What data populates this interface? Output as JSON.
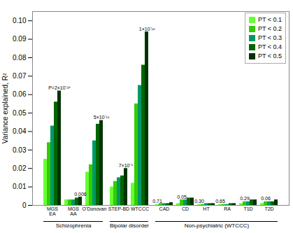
{
  "chart_data": {
    "type": "bar",
    "categories": [
      "MGS\nEA",
      "MGS\nAA",
      "O'Donovan",
      "STEP-BD",
      "WTCCC",
      "CAD",
      "CD",
      "HT",
      "RA",
      "T1D",
      "T2D"
    ],
    "series": [
      {
        "name": "PT < 0.1",
        "color": "#66ff33",
        "values": [
          0.025,
          0.003,
          0.018,
          0.01,
          0.012,
          0.0005,
          0.001,
          0.0005,
          0.0005,
          0.001,
          0.001
        ]
      },
      {
        "name": "PT < 0.2",
        "color": "#33cc00",
        "values": [
          0.034,
          0.003,
          0.022,
          0.013,
          0.055,
          0.001,
          0.003,
          0.0005,
          0.0005,
          0.002,
          0.002
        ]
      },
      {
        "name": "PT < 0.3",
        "color": "#009966",
        "values": [
          0.043,
          0.003,
          0.035,
          0.015,
          0.065,
          0.001,
          0.003,
          0.001,
          0.0005,
          0.002,
          0.002
        ]
      },
      {
        "name": "PT < 0.4",
        "color": "#006600",
        "values": [
          0.056,
          0.004,
          0.044,
          0.016,
          0.076,
          0.001,
          0.004,
          0.001,
          0.001,
          0.003,
          0.002
        ]
      },
      {
        "name": "PT < 0.5",
        "color": "#003300",
        "values": [
          0.062,
          0.0045,
          0.046,
          0.02,
          0.094,
          0.0015,
          0.004,
          0.001,
          0.001,
          0.003,
          0.003
        ]
      }
    ],
    "ylabel": "Variance explained, R²",
    "ylim": [
      0,
      0.105
    ],
    "yticks": [
      0,
      0.01,
      0.02,
      0.03,
      0.04,
      0.05,
      0.06,
      0.07,
      0.08,
      0.09,
      {
        "value": 0.1,
        "label": "0.10"
      }
    ],
    "grid": false,
    "legend": "upper right",
    "annotations": [
      {
        "text": "P=2×10⁻²⁶",
        "category": "MGS\nEA",
        "series": "PT < 0.5"
      },
      {
        "text": "0.006",
        "category": "MGS\nAA",
        "series": "PT < 0.5"
      },
      {
        "text": "5×10⁻¹¹",
        "category": "O'Donovan",
        "series": "PT < 0.5"
      },
      {
        "text": "7×10⁻⁶",
        "category": "STEP-BD",
        "series": "PT < 0.5"
      },
      {
        "text": "1×10⁻¹²",
        "category": "WTCCC",
        "series": "PT < 0.5"
      },
      {
        "text": "0.71",
        "category": "CAD",
        "series": "PT < 0.1"
      },
      {
        "text": "0.05",
        "category": "CD",
        "series": "PT < 0.2"
      },
      {
        "text": "0.30",
        "category": "HT",
        "series": "PT < 0.1"
      },
      {
        "text": "0.65",
        "category": "RA",
        "series": "PT < 0.1"
      },
      {
        "text": "0.29",
        "category": "T1D",
        "series": "PT < 0.2"
      },
      {
        "text": "0.06",
        "category": "T2D",
        "series": "PT < 0.2"
      }
    ],
    "sections": [
      {
        "text": "Schizophrenia",
        "categories": [
          "MGS\nEA",
          "MGS\nAA",
          "O'Donovan"
        ]
      },
      {
        "text": "Bipolar disorder",
        "categories": [
          "STEP-BD",
          "WTCCC"
        ]
      },
      {
        "text": "Non-psychiatric (WTCCC)",
        "categories": [
          "CAD",
          "CD",
          "HT",
          "RA",
          "T1D",
          "T2D"
        ]
      }
    ]
  }
}
